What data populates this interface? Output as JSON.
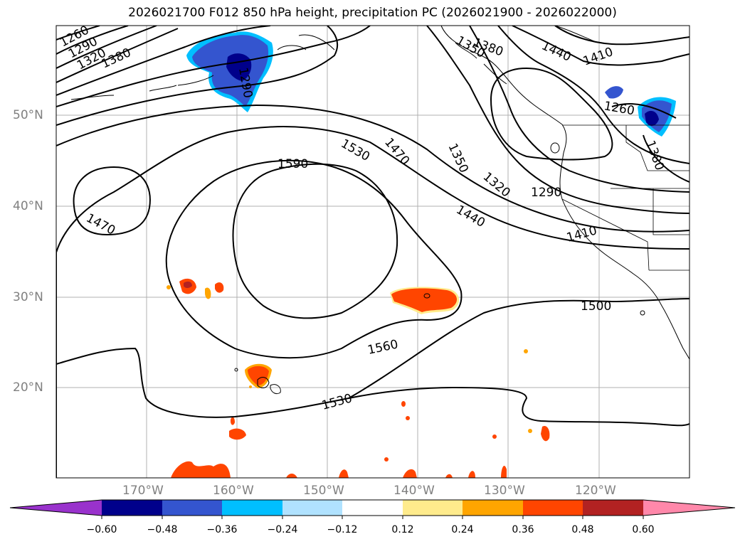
{
  "title": "2026021700 F012 850 hPa height, precipitation PC (2026021900 - 2026022000)",
  "lat_labels": [
    "50°N",
    "40°N",
    "30°N",
    "20°N"
  ],
  "lon_labels": [
    "170°W",
    "160°W",
    "150°W",
    "140°W",
    "130°W",
    "120°W"
  ],
  "contour_labels": [
    "1260",
    "1290",
    "1320",
    "1380",
    "1470",
    "1590",
    "1530",
    "1470",
    "1350",
    "1320",
    "1290",
    "1440",
    "1410",
    "1500",
    "1560",
    "1530",
    "1440",
    "1410",
    "1260",
    "1380",
    "1350",
    "1380",
    "1290"
  ],
  "colorbar": {
    "ticks": [
      "−0.60",
      "−0.48",
      "−0.36",
      "−0.24",
      "−0.12",
      "0.12",
      "0.24",
      "0.36",
      "0.48",
      "0.60"
    ],
    "colors": [
      "#9932cc",
      "#00008b",
      "#3455cf",
      "#00bfff",
      "#b0e2ff",
      "#ffffff",
      "#ffeb8c",
      "#ffa500",
      "#ff4500",
      "#b22222",
      "#ff88aa"
    ]
  }
}
